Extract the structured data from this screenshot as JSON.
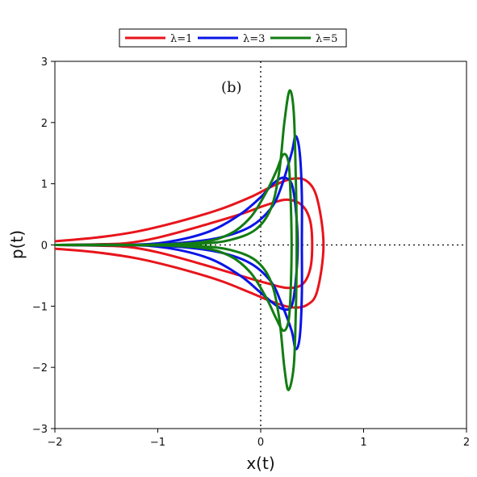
{
  "chart_data": {
    "type": "line",
    "title": "",
    "panel_label": "(b)",
    "xlabel": "x(t)",
    "ylabel": "p(t)",
    "xlim": [
      -2,
      2
    ],
    "ylim": [
      -3,
      3
    ],
    "xticks": [
      -2,
      -1,
      0,
      1,
      2
    ],
    "yticks": [
      -3,
      -2,
      -1,
      0,
      1,
      2,
      3
    ],
    "xtick_labels": [
      "−2",
      "−1",
      "0",
      "1",
      "2"
    ],
    "ytick_labels": [
      "−3",
      "−2",
      "−1",
      "0",
      "1",
      "2",
      "3"
    ],
    "grid": false,
    "reference_lines": {
      "x": 0,
      "y": 0,
      "style": "dotted"
    },
    "legend_position": "top-left, outside plot",
    "series": [
      {
        "name": "λ=1",
        "color": "#e8141b",
        "curves": [
          [
            [
              -2.0,
              0.06
            ],
            [
              -1.6,
              0.12
            ],
            [
              -1.2,
              0.22
            ],
            [
              -0.8,
              0.38
            ],
            [
              -0.4,
              0.58
            ],
            [
              -0.1,
              0.78
            ],
            [
              0.1,
              0.95
            ],
            [
              0.3,
              1.08
            ],
            [
              0.45,
              1.04
            ],
            [
              0.55,
              0.75
            ],
            [
              0.61,
              0.0
            ],
            [
              0.55,
              -0.75
            ],
            [
              0.45,
              -0.98
            ],
            [
              0.3,
              -1.02
            ],
            [
              0.1,
              -0.92
            ],
            [
              -0.1,
              -0.78
            ],
            [
              -0.4,
              -0.58
            ],
            [
              -0.8,
              -0.38
            ],
            [
              -1.2,
              -0.22
            ],
            [
              -1.6,
              -0.12
            ],
            [
              -2.0,
              -0.06
            ]
          ],
          [
            [
              -2.0,
              0.0
            ],
            [
              -1.6,
              0.01
            ],
            [
              -1.3,
              0.03
            ],
            [
              -1.0,
              0.12
            ],
            [
              -0.6,
              0.3
            ],
            [
              -0.2,
              0.5
            ],
            [
              0.05,
              0.65
            ],
            [
              0.25,
              0.74
            ],
            [
              0.4,
              0.65
            ],
            [
              0.48,
              0.4
            ],
            [
              0.5,
              0.0
            ],
            [
              0.48,
              -0.4
            ],
            [
              0.4,
              -0.65
            ],
            [
              0.25,
              -0.7
            ],
            [
              0.05,
              -0.62
            ],
            [
              -0.2,
              -0.5
            ],
            [
              -0.6,
              -0.3
            ],
            [
              -1.0,
              -0.12
            ],
            [
              -1.3,
              -0.03
            ],
            [
              -1.6,
              -0.01
            ],
            [
              -2.0,
              0.0
            ]
          ]
        ]
      },
      {
        "name": "λ=3",
        "color": "#0a14e6",
        "curves": [
          [
            [
              -2.0,
              0.0
            ],
            [
              -1.3,
              0.0
            ],
            [
              -0.9,
              0.05
            ],
            [
              -0.5,
              0.22
            ],
            [
              -0.2,
              0.5
            ],
            [
              0.0,
              0.78
            ],
            [
              0.12,
              1.0
            ],
            [
              0.22,
              1.1
            ],
            [
              0.3,
              1.0
            ],
            [
              0.34,
              0.6
            ],
            [
              0.36,
              0.0
            ],
            [
              0.34,
              -0.6
            ],
            [
              0.3,
              -1.0
            ],
            [
              0.22,
              -1.05
            ],
            [
              0.12,
              -0.95
            ],
            [
              0.0,
              -0.78
            ],
            [
              -0.2,
              -0.5
            ],
            [
              -0.5,
              -0.22
            ],
            [
              -0.9,
              -0.05
            ],
            [
              -1.3,
              0.0
            ],
            [
              -2.0,
              0.0
            ]
          ],
          [
            [
              -2.0,
              0.0
            ],
            [
              -1.3,
              0.0
            ],
            [
              -0.8,
              0.03
            ],
            [
              -0.4,
              0.12
            ],
            [
              -0.1,
              0.3
            ],
            [
              0.1,
              0.6
            ],
            [
              0.2,
              0.95
            ],
            [
              0.3,
              1.5
            ],
            [
              0.34,
              1.78
            ],
            [
              0.38,
              1.5
            ],
            [
              0.4,
              0.8
            ],
            [
              0.4,
              0.0
            ],
            [
              0.4,
              -0.8
            ],
            [
              0.38,
              -1.5
            ],
            [
              0.34,
              -1.7
            ],
            [
              0.3,
              -1.4
            ],
            [
              0.2,
              -0.95
            ],
            [
              0.1,
              -0.6
            ],
            [
              -0.1,
              -0.3
            ],
            [
              -0.4,
              -0.12
            ],
            [
              -0.8,
              -0.03
            ],
            [
              -1.3,
              0.0
            ],
            [
              -2.0,
              0.0
            ]
          ]
        ]
      },
      {
        "name": "λ=5",
        "color": "#127d12",
        "curves": [
          [
            [
              -2.0,
              0.0
            ],
            [
              -1.2,
              0.0
            ],
            [
              -0.6,
              0.04
            ],
            [
              -0.3,
              0.18
            ],
            [
              -0.1,
              0.45
            ],
            [
              0.05,
              0.85
            ],
            [
              0.15,
              1.2
            ],
            [
              0.22,
              1.48
            ],
            [
              0.27,
              1.35
            ],
            [
              0.29,
              0.8
            ],
            [
              0.3,
              0.0
            ],
            [
              0.29,
              -0.8
            ],
            [
              0.27,
              -1.25
            ],
            [
              0.22,
              -1.4
            ],
            [
              0.15,
              -1.2
            ],
            [
              0.05,
              -0.85
            ],
            [
              -0.1,
              -0.45
            ],
            [
              -0.3,
              -0.18
            ],
            [
              -0.6,
              -0.04
            ],
            [
              -1.2,
              0.0
            ],
            [
              -2.0,
              0.0
            ]
          ],
          [
            [
              -2.0,
              0.0
            ],
            [
              -1.2,
              0.0
            ],
            [
              -0.6,
              0.02
            ],
            [
              -0.3,
              0.08
            ],
            [
              -0.05,
              0.25
            ],
            [
              0.1,
              0.6
            ],
            [
              0.18,
              1.2
            ],
            [
              0.23,
              2.0
            ],
            [
              0.28,
              2.52
            ],
            [
              0.32,
              2.2
            ],
            [
              0.34,
              1.2
            ],
            [
              0.35,
              0.0
            ],
            [
              0.34,
              -1.2
            ],
            [
              0.32,
              -2.0
            ],
            [
              0.27,
              -2.37
            ],
            [
              0.23,
              -2.0
            ],
            [
              0.18,
              -1.2
            ],
            [
              0.1,
              -0.6
            ],
            [
              -0.05,
              -0.25
            ],
            [
              -0.3,
              -0.08
            ],
            [
              -0.6,
              -0.02
            ],
            [
              -1.2,
              0.0
            ],
            [
              -2.0,
              0.0
            ]
          ]
        ]
      }
    ]
  }
}
